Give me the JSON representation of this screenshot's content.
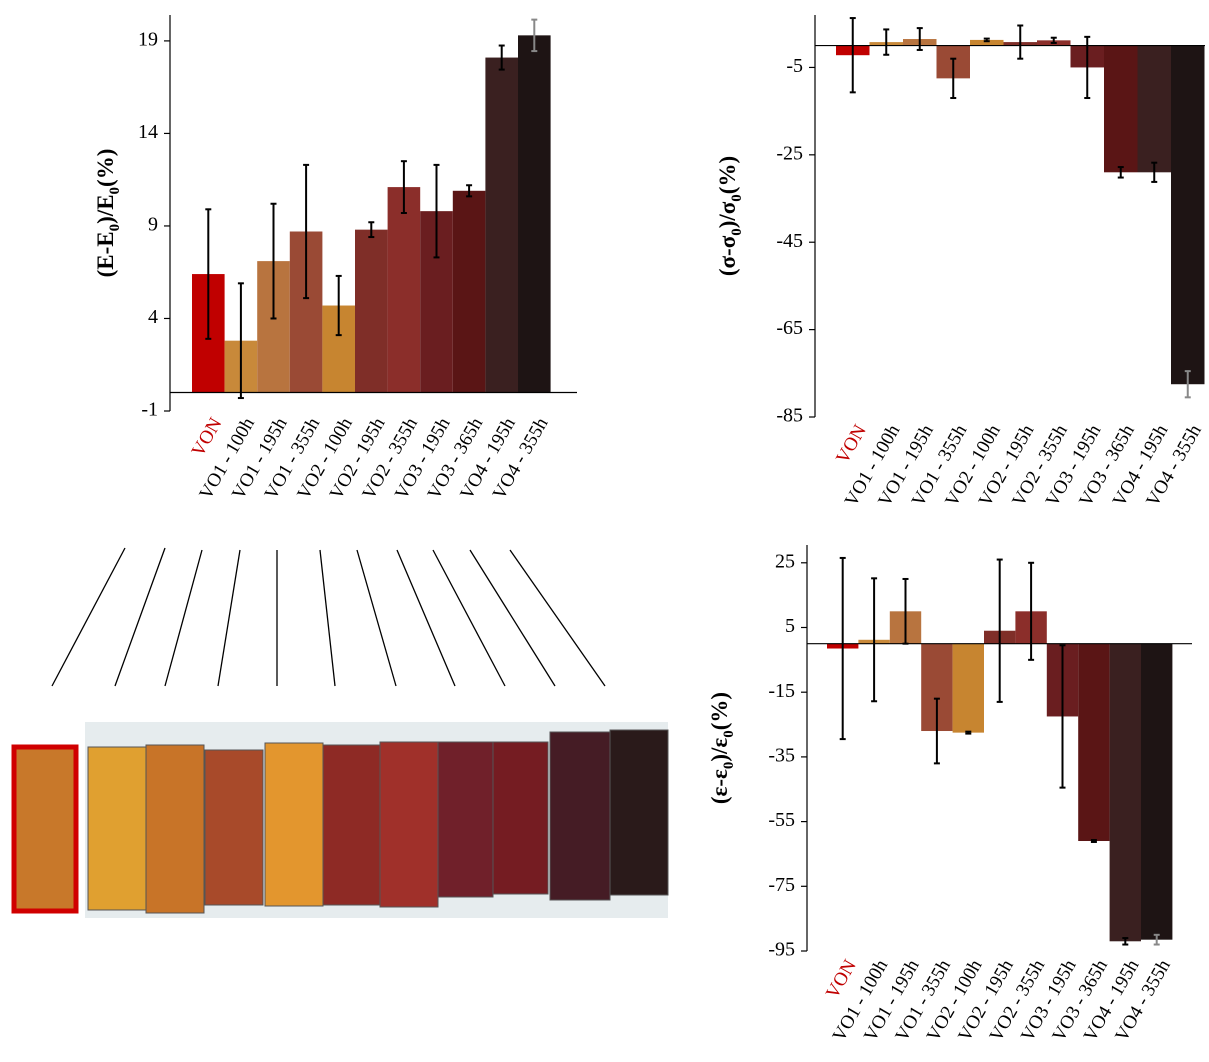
{
  "chart_data": [
    {
      "type": "bar",
      "ylabel_parts": [
        {
          "text": "(E-E"
        },
        {
          "text": "0",
          "sub": true
        },
        {
          "text": ")/E"
        },
        {
          "text": "0",
          "sub": true
        },
        {
          "text": "(%)"
        }
      ],
      "categories": [
        "VON",
        "VO1 - 100h",
        "VO1 - 195h",
        "VO1 - 355h",
        "VO2 - 100h",
        "VO2 - 195h",
        "VO2 - 355h",
        "VO3 - 195h",
        "VO3 - 365h",
        "VO4 - 195h",
        "VO4 - 355h"
      ],
      "category_colors": [
        "#c00000",
        "#000000",
        "#000000",
        "#000000",
        "#000000",
        "#000000",
        "#000000",
        "#000000",
        "#000000",
        "#000000",
        "#000000"
      ],
      "values": [
        6.4,
        2.8,
        7.1,
        8.7,
        4.7,
        8.8,
        11.1,
        9.8,
        10.9,
        18.1,
        19.3
      ],
      "errors": [
        3.5,
        3.1,
        3.1,
        3.6,
        1.6,
        0.4,
        1.4,
        2.5,
        0.3,
        0.65,
        0.85
      ],
      "colors": [
        "#c00000",
        "#c8893a",
        "#b8743f",
        "#9a4a35",
        "#c78530",
        "#7f2e28",
        "#8b2e2a",
        "#6a1e20",
        "#5a1515",
        "#3a2020",
        "#1e1414"
      ],
      "error_colors": [
        "#000000",
        "#000000",
        "#000000",
        "#000000",
        "#000000",
        "#000000",
        "#000000",
        "#000000",
        "#000000",
        "#000000",
        "#888888"
      ],
      "ylim": [
        -1,
        20.4
      ],
      "yticks": [
        -1,
        4,
        9,
        14,
        19
      ]
    },
    {
      "type": "bar",
      "ylabel_parts": [
        {
          "text": "(σ-σ"
        },
        {
          "text": "0",
          "sub": true
        },
        {
          "text": ")/σ"
        },
        {
          "text": "0",
          "sub": true
        },
        {
          "text": "(%)"
        }
      ],
      "categories": [
        "VON",
        "VO1 - 100h",
        "VO1 - 195h",
        "VO1 - 355h",
        "VO2 - 100h",
        "VO2 - 195h",
        "VO2 - 355h",
        "VO3 - 195h",
        "VO3 - 365h",
        "VO4 - 195h",
        "VO4 - 355h"
      ],
      "category_colors": [
        "#c00000",
        "#000000",
        "#000000",
        "#000000",
        "#000000",
        "#000000",
        "#000000",
        "#000000",
        "#000000",
        "#000000",
        "#000000"
      ],
      "values": [
        -2.2,
        0.8,
        1.5,
        -7.5,
        1.3,
        0.8,
        1.2,
        -5,
        -29,
        -29,
        -77.5
      ],
      "errors": [
        8.5,
        2.9,
        2.5,
        4.5,
        0.3,
        3.8,
        0.6,
        7,
        1.2,
        2.2,
        3
      ],
      "colors": [
        "#c00000",
        "#c8893a",
        "#b8743f",
        "#9a4a35",
        "#c78530",
        "#7f2e28",
        "#8b2e2a",
        "#6a1e20",
        "#5a1515",
        "#3a2020",
        "#1e1414"
      ],
      "error_colors": [
        "#000000",
        "#000000",
        "#000000",
        "#000000",
        "#000000",
        "#000000",
        "#000000",
        "#000000",
        "#000000",
        "#000000",
        "#888888"
      ],
      "ylim": [
        -85,
        7
      ],
      "yticks": [
        -5,
        -25,
        -45,
        -65,
        -85
      ]
    },
    {
      "type": "bar",
      "ylabel_parts": [
        {
          "text": "(ε-ε"
        },
        {
          "text": "0",
          "sub": true
        },
        {
          "text": ")/ε"
        },
        {
          "text": "0",
          "sub": true
        },
        {
          "text": "(%)"
        }
      ],
      "categories": [
        "VON",
        "VO1 - 100h",
        "VO1 - 195h",
        "VO1 - 355h",
        "VO2 - 100h",
        "VO2 - 195h",
        "VO2 - 355h",
        "VO3 - 195h",
        "VO3 - 365h",
        "VO4 - 195h",
        "VO4 - 355h"
      ],
      "category_colors": [
        "#c00000",
        "#000000",
        "#000000",
        "#000000",
        "#000000",
        "#000000",
        "#000000",
        "#000000",
        "#000000",
        "#000000",
        "#000000"
      ],
      "values": [
        -1.5,
        1.2,
        10,
        -27,
        -27.5,
        4,
        10,
        -22.5,
        -61,
        -92,
        -91.5
      ],
      "errors": [
        28,
        19,
        10,
        10,
        0.3,
        22,
        15,
        22,
        0.3,
        1,
        1.5
      ],
      "colors": [
        "#c00000",
        "#c8893a",
        "#b8743f",
        "#9a4a35",
        "#c78530",
        "#7f2e28",
        "#8b2e2a",
        "#6a1e20",
        "#5a1515",
        "#3a2020",
        "#1e1414"
      ],
      "error_colors": [
        "#000000",
        "#000000",
        "#000000",
        "#000000",
        "#000000",
        "#000000",
        "#000000",
        "#000000",
        "#000000",
        "#000000",
        "#888888"
      ],
      "ylim": [
        -95,
        30.5
      ],
      "yticks": [
        25,
        5,
        -15,
        -35,
        -55,
        -75,
        -95
      ]
    }
  ]
}
